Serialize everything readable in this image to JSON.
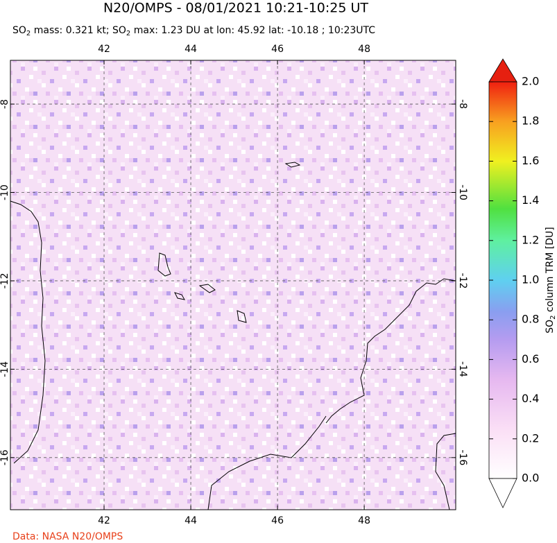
{
  "title": "N20/OMPS - 08/01/2021 10:21-10:25 UT",
  "subtitle": [
    "SO",
    "2",
    " mass: 0.321 kt; SO",
    "2",
    " max: 1.23 DU at lon: 45.92 lat: -10.18 ; 10:23UTC"
  ],
  "map": {
    "xlim": [
      39.84,
      50.11
    ],
    "ylim": [
      -17.18,
      -7.01
    ],
    "xticks": [
      42,
      44,
      46,
      48
    ],
    "yticks": [
      -8,
      -10,
      -12,
      -14,
      -16
    ],
    "grid": true
  },
  "colorbar": {
    "label": [
      "SO",
      "2",
      " column TRM [DU]"
    ],
    "clim": [
      0,
      2.0
    ],
    "ticks": [
      {
        "value": 0,
        "label": "0.0"
      },
      {
        "value": 0.2,
        "label": "0.2"
      },
      {
        "value": 0.4,
        "label": "0.4"
      },
      {
        "value": 0.6,
        "label": "0.6"
      },
      {
        "value": 0.8,
        "label": "0.8"
      },
      {
        "value": 1.0,
        "label": "1.0"
      },
      {
        "value": 1.2,
        "label": "1.2"
      },
      {
        "value": 1.4,
        "label": "1.4"
      },
      {
        "value": 1.6,
        "label": "1.6"
      },
      {
        "value": 1.8,
        "label": "1.8"
      },
      {
        "value": 2.0,
        "label": "2.0"
      }
    ]
  },
  "credit": "Data: NASA N20/OMPS"
}
